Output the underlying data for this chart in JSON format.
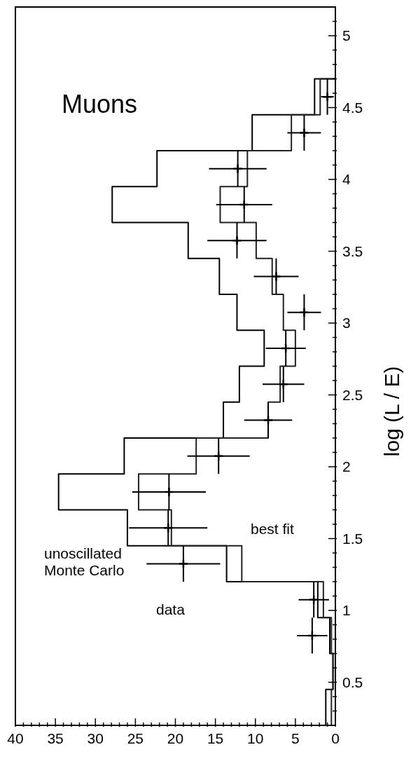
{
  "chart_data": {
    "type": "histogram",
    "orientation": "horizontal",
    "ylabel": "log (L / E)",
    "bins": [
      0.2,
      0.45,
      0.7,
      0.95,
      1.2,
      1.45,
      1.7,
      1.95,
      2.2,
      2.45,
      2.7,
      2.95,
      3.2,
      3.45,
      3.7,
      3.95,
      4.2,
      4.45,
      4.7
    ],
    "series": [
      {
        "color": "#000000",
        "values": [
          1.2,
          0.3,
          0.7,
          2.2,
          13.6,
          26.0,
          34.6,
          26.4,
          14.0,
          12.0,
          8.9,
          12.3,
          14.5,
          18.4,
          27.9,
          22.3,
          10.4,
          2.6
        ]
      },
      {
        "color": "#222222",
        "values": [
          0.5,
          0.3,
          0.5,
          1.5,
          11.7,
          20.5,
          24.6,
          17.4,
          8.4,
          6.9,
          5.0,
          6.5,
          7.9,
          9.9,
          14.4,
          11.0,
          5.5,
          1.9
        ]
      },
      {
        "type": "scatter",
        "color": "#000000",
        "x": [
          0.825,
          1.075,
          1.325,
          1.575,
          1.825,
          2.075,
          2.325,
          2.575,
          2.825,
          3.075,
          3.325,
          3.575,
          3.825,
          4.075,
          4.325,
          4.575
        ],
        "values": [
          2.9,
          2.7,
          19.0,
          20.9,
          20.8,
          14.6,
          8.4,
          6.5,
          6.2,
          3.9,
          7.4,
          12.3,
          11.4,
          12.2,
          3.9,
          1.0
        ],
        "errors": [
          1.9,
          1.9,
          4.6,
          4.9,
          4.6,
          3.9,
          3.0,
          2.6,
          2.5,
          2.1,
          2.8,
          3.7,
          3.5,
          3.6,
          2.1,
          0.8
        ],
        "xerrors": [
          0.125,
          0.125,
          0.125,
          0.125,
          0.125,
          0.125,
          0.125,
          0.125,
          0.125,
          0.125,
          0.125,
          0.125,
          0.125,
          0.125,
          0.125,
          0.125
        ]
      }
    ],
    "marker": "cross",
    "ylim": [
      0.2,
      5.2
    ],
    "yticks": [
      {
        "value": 0.3,
        "label": null
      },
      {
        "value": 0.4,
        "label": null
      },
      0.5,
      {
        "value": 0.6,
        "label": null
      },
      {
        "value": 0.7,
        "label": null
      },
      {
        "value": 0.8,
        "label": null
      },
      {
        "value": 0.9,
        "label": null
      },
      1,
      {
        "value": 1.1,
        "label": null
      },
      {
        "value": 1.2,
        "label": null
      },
      {
        "value": 1.3,
        "label": null
      },
      {
        "value": 1.4,
        "label": null
      },
      1.5,
      {
        "value": 1.6,
        "label": null
      },
      {
        "value": 1.7,
        "label": null
      },
      {
        "value": 1.8,
        "label": null
      },
      {
        "value": 1.9,
        "label": null
      },
      2,
      {
        "value": 2.1,
        "label": null
      },
      {
        "value": 2.2,
        "label": null
      },
      {
        "value": 2.3,
        "label": null
      },
      {
        "value": 2.4,
        "label": null
      },
      2.5,
      {
        "value": 2.6,
        "label": null
      },
      {
        "value": 2.7,
        "label": null
      },
      {
        "value": 2.8,
        "label": null
      },
      {
        "value": 2.9,
        "label": null
      },
      3,
      {
        "value": 3.1,
        "label": null
      },
      {
        "value": 3.2,
        "label": null
      },
      {
        "value": 3.3,
        "label": null
      },
      {
        "value": 3.4,
        "label": null
      },
      3.5,
      {
        "value": 3.6,
        "label": null
      },
      {
        "value": 3.7,
        "label": null
      },
      {
        "value": 3.8,
        "label": null
      },
      {
        "value": 3.9,
        "label": null
      },
      4,
      {
        "value": 4.1,
        "label": null
      },
      {
        "value": 4.2,
        "label": null
      },
      {
        "value": 4.3,
        "label": null
      },
      {
        "value": 4.4,
        "label": null
      },
      4.5,
      {
        "value": 4.6,
        "label": null
      },
      {
        "value": 4.7,
        "label": null
      },
      {
        "value": 4.8,
        "label": null
      },
      {
        "value": 4.9,
        "label": null
      },
      5,
      {
        "value": 5.1,
        "label": null
      }
    ],
    "xlim": [
      40,
      0
    ],
    "xticks": [
      0,
      {
        "value": 1,
        "label": null
      },
      {
        "value": 2,
        "label": null
      },
      {
        "value": 3,
        "label": null
      },
      {
        "value": 4,
        "label": null
      },
      5,
      {
        "value": 6,
        "label": null
      },
      {
        "value": 7,
        "label": null
      },
      {
        "value": 8,
        "label": null
      },
      {
        "value": 9,
        "label": null
      },
      10,
      {
        "value": 11,
        "label": null
      },
      {
        "value": 12,
        "label": null
      },
      {
        "value": 13,
        "label": null
      },
      {
        "value": 14,
        "label": null
      },
      15,
      {
        "value": 16,
        "label": null
      },
      {
        "value": 17,
        "label": null
      },
      {
        "value": 18,
        "label": null
      },
      {
        "value": 19,
        "label": null
      },
      20,
      {
        "value": 21,
        "label": null
      },
      {
        "value": 22,
        "label": null
      },
      {
        "value": 23,
        "label": null
      },
      {
        "value": 24,
        "label": null
      },
      25,
      {
        "value": 26,
        "label": null
      },
      {
        "value": 27,
        "label": null
      },
      {
        "value": 28,
        "label": null
      },
      {
        "value": 29,
        "label": null
      },
      30,
      {
        "value": 31,
        "label": null
      },
      {
        "value": 32,
        "label": null
      },
      {
        "value": 33,
        "label": null
      },
      {
        "value": 34,
        "label": null
      },
      35,
      {
        "value": 36,
        "label": null
      },
      {
        "value": 37,
        "label": null
      },
      {
        "value": 38,
        "label": null
      },
      {
        "value": 39,
        "label": null
      },
      40
    ],
    "grid": false,
    "annotations": [
      "Muons",
      "unoscillated Monte Carlo",
      "data",
      "best fit"
    ]
  }
}
